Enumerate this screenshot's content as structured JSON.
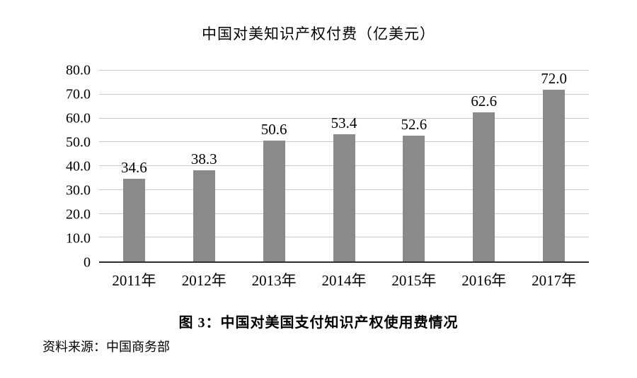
{
  "chart": {
    "title": "中国对美知识产权付费（亿美元）",
    "caption": "图 3：中国对美国支付知识产权使用费情况",
    "source": "资料来源：中国商务部"
  },
  "chart_data": {
    "type": "bar",
    "title": "中国对美知识产权付费（亿美元）",
    "categories": [
      "2011年",
      "2012年",
      "2013年",
      "2014年",
      "2015年",
      "2016年",
      "2017年"
    ],
    "values": [
      34.6,
      38.3,
      50.6,
      53.4,
      52.6,
      62.6,
      72.0
    ],
    "value_labels": [
      "34.6",
      "38.3",
      "50.6",
      "53.4",
      "52.6",
      "62.6",
      "72.0"
    ],
    "xlabel": "",
    "ylabel": "",
    "ylim": [
      0,
      80
    ],
    "ytick_step": 10,
    "ytick_labels": [
      "0",
      "10.0",
      "20.0",
      "30.0",
      "40.0",
      "50.0",
      "60.0",
      "70.0",
      "80.0"
    ],
    "grid": true,
    "legend": "none",
    "bar_color": "#8a8a8a"
  }
}
